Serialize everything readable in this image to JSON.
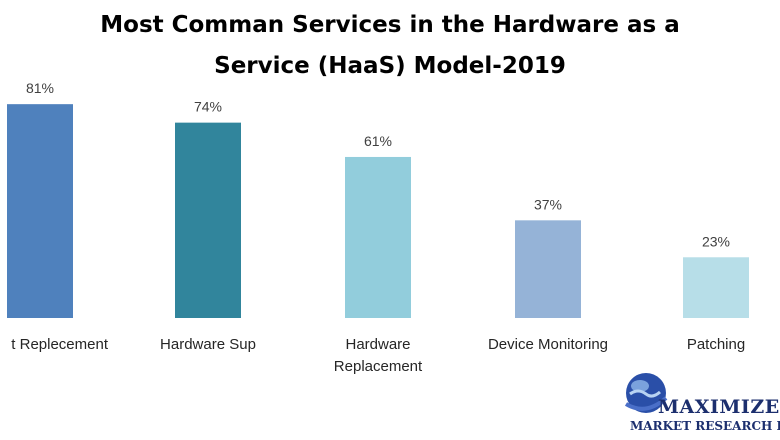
{
  "chart_data": {
    "type": "bar",
    "title": "Most Comman Services in the Hardware as a Service (HaaS) Model-2019",
    "title_lines": [
      "Most Comman Services in the Hardware as a",
      "Service (HaaS) Model-2019"
    ],
    "categories": [
      [
        "Hardware Replecement"
      ],
      [
        "Hardware Sup"
      ],
      [
        "Hardware",
        "Replacement"
      ],
      [
        "Device Monitoring"
      ],
      [
        "Patching"
      ]
    ],
    "category_labels_visible": [
      [
        "t Replecement"
      ],
      [
        "Hardware Sup"
      ],
      [
        "Hardware",
        "Replacement"
      ],
      [
        "Device Monitoring"
      ],
      [
        "Patching"
      ]
    ],
    "values": [
      81,
      74,
      61,
      37,
      23
    ],
    "data_labels": [
      "81%",
      "74%",
      "61%",
      "37%",
      "23%"
    ],
    "colors": [
      "#4f81bd",
      "#31859c",
      "#92cddc",
      "#95b3d7",
      "#b7dee8"
    ],
    "ylim": [
      0,
      100
    ],
    "grid": false,
    "legend": "none",
    "xlabel": "",
    "ylabel": ""
  },
  "logo": {
    "name": "MAXIMIZE",
    "subtitle": "MARKET RESEARCH PVT"
  }
}
